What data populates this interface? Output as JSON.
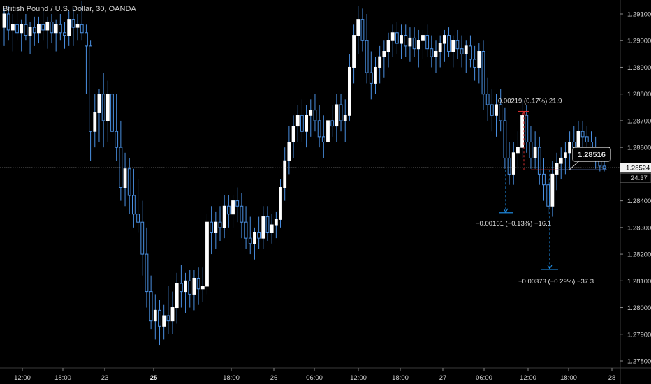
{
  "header": {
    "symbol_title": "British Pound / U.S. Dollar, 30, OANDA"
  },
  "price_scale": {
    "ticks": [
      "1.29100",
      "1.29000",
      "1.28900",
      "1.28800",
      "1.28700",
      "1.28600",
      "1.28400",
      "1.28300",
      "1.28200",
      "1.28100",
      "1.28000",
      "1.27900",
      "1.27800"
    ],
    "last_price_label": "1.28524",
    "countdown_label": "24:37"
  },
  "time_axis": {
    "ticks": [
      {
        "label": "12:00",
        "bold": false
      },
      {
        "label": "18:00",
        "bold": false
      },
      {
        "label": "23",
        "bold": false
      },
      {
        "label": "25",
        "bold": true
      },
      {
        "label": "18:00",
        "bold": false
      },
      {
        "label": "26",
        "bold": false
      },
      {
        "label": "06:00",
        "bold": false
      },
      {
        "label": "12:00",
        "bold": false
      },
      {
        "label": "18:00",
        "bold": false
      },
      {
        "label": "27",
        "bold": false
      },
      {
        "label": "06:00",
        "bold": false
      },
      {
        "label": "12:00",
        "bold": false
      },
      {
        "label": "18:00",
        "bold": false
      },
      {
        "label": "28",
        "bold": false
      }
    ]
  },
  "annotations": {
    "price_callout": "1.28516",
    "measure_up": "0.00219 (0.17%) 21.9",
    "measure_down_1": "−0.00161 (−0.13%) −16.1",
    "measure_down_2": "−0.00373 (−0.29%) −37.3"
  },
  "colors": {
    "background": "#000000",
    "candle_up_fill": "#ffffff",
    "candle_down_fill": "#ffffff",
    "wick": "#4a90e2",
    "measure_up": "#d32f2f",
    "measure_down": "#2196f3",
    "price_line": "#bdbdbd"
  },
  "chart_data": {
    "type": "candlestick",
    "title": "British Pound / U.S. Dollar, 30, OANDA",
    "ylim": [
      1.2777,
      1.2915
    ],
    "ohlc": [
      [
        1.2905,
        1.2912,
        1.2898,
        1.291
      ],
      [
        1.291,
        1.2913,
        1.29,
        1.2904
      ],
      [
        1.2904,
        1.291,
        1.2896,
        1.2906
      ],
      [
        1.2906,
        1.2912,
        1.29,
        1.2903
      ],
      [
        1.2903,
        1.2908,
        1.2896,
        1.2906
      ],
      [
        1.2906,
        1.291,
        1.29,
        1.2902
      ],
      [
        1.2902,
        1.2907,
        1.2895,
        1.2905
      ],
      [
        1.2905,
        1.2909,
        1.2898,
        1.2903
      ],
      [
        1.2903,
        1.2909,
        1.2899,
        1.2906
      ],
      [
        1.2906,
        1.2911,
        1.29,
        1.2904
      ],
      [
        1.2904,
        1.2909,
        1.2897,
        1.2907
      ],
      [
        1.2907,
        1.291,
        1.2899,
        1.2903
      ],
      [
        1.2903,
        1.2908,
        1.2896,
        1.2906
      ],
      [
        1.2906,
        1.291,
        1.29,
        1.2903
      ],
      [
        1.2903,
        1.2907,
        1.2897,
        1.2902
      ],
      [
        1.2902,
        1.2911,
        1.2898,
        1.2908
      ],
      [
        1.2908,
        1.2912,
        1.2898,
        1.2905
      ],
      [
        1.2905,
        1.291,
        1.29,
        1.2906
      ],
      [
        1.2906,
        1.2915,
        1.29,
        1.2903
      ],
      [
        1.2903,
        1.2906,
        1.288,
        1.2898
      ],
      [
        1.2898,
        1.29,
        1.2855,
        1.2866
      ],
      [
        1.2866,
        1.288,
        1.286,
        1.2873
      ],
      [
        1.2873,
        1.2882,
        1.2862,
        1.288
      ],
      [
        1.288,
        1.2888,
        1.286,
        1.287
      ],
      [
        1.287,
        1.2885,
        1.2862,
        1.288
      ],
      [
        1.288,
        1.2884,
        1.286,
        1.2866
      ],
      [
        1.2866,
        1.288,
        1.2855,
        1.286
      ],
      [
        1.286,
        1.287,
        1.284,
        1.2845
      ],
      [
        1.2845,
        1.2858,
        1.2838,
        1.2852
      ],
      [
        1.2852,
        1.2856,
        1.2835,
        1.2842
      ],
      [
        1.2842,
        1.2852,
        1.283,
        1.2835
      ],
      [
        1.2835,
        1.2848,
        1.2828,
        1.2832
      ],
      [
        1.2832,
        1.284,
        1.2812,
        1.282
      ],
      [
        1.282,
        1.283,
        1.28,
        1.2806
      ],
      [
        1.2806,
        1.2812,
        1.2792,
        1.2795
      ],
      [
        1.2795,
        1.2805,
        1.2788,
        1.2799
      ],
      [
        1.2799,
        1.2803,
        1.2786,
        1.2793
      ],
      [
        1.2793,
        1.2801,
        1.2788,
        1.2797
      ],
      [
        1.2797,
        1.2808,
        1.279,
        1.2795
      ],
      [
        1.2795,
        1.2806,
        1.279,
        1.28
      ],
      [
        1.28,
        1.2813,
        1.2794,
        1.2809
      ],
      [
        1.2809,
        1.2816,
        1.28,
        1.2806
      ],
      [
        1.2806,
        1.2813,
        1.2798,
        1.281
      ],
      [
        1.281,
        1.2814,
        1.28,
        1.2805
      ],
      [
        1.2805,
        1.2814,
        1.2799,
        1.2811
      ],
      [
        1.2811,
        1.2815,
        1.2801,
        1.2807
      ],
      [
        1.2807,
        1.2815,
        1.2802,
        1.2808
      ],
      [
        1.2808,
        1.2835,
        1.2805,
        1.2832
      ],
      [
        1.2832,
        1.2838,
        1.282,
        1.2828
      ],
      [
        1.2828,
        1.2836,
        1.2822,
        1.2832
      ],
      [
        1.2832,
        1.2838,
        1.2825,
        1.283
      ],
      [
        1.283,
        1.2842,
        1.2826,
        1.2838
      ],
      [
        1.2838,
        1.2842,
        1.283,
        1.2835
      ],
      [
        1.2835,
        1.2842,
        1.283,
        1.284
      ],
      [
        1.284,
        1.2845,
        1.2832,
        1.2838
      ],
      [
        1.2838,
        1.2843,
        1.2826,
        1.2832
      ],
      [
        1.2832,
        1.2838,
        1.2822,
        1.2826
      ],
      [
        1.2826,
        1.2834,
        1.282,
        1.2824
      ],
      [
        1.2824,
        1.283,
        1.2818,
        1.2828
      ],
      [
        1.2828,
        1.2834,
        1.2822,
        1.2826
      ],
      [
        1.2826,
        1.2838,
        1.2822,
        1.2834
      ],
      [
        1.2834,
        1.2838,
        1.2825,
        1.2828
      ],
      [
        1.2828,
        1.2835,
        1.2824,
        1.2831
      ],
      [
        1.2831,
        1.2836,
        1.2826,
        1.2833
      ],
      [
        1.2833,
        1.2848,
        1.283,
        1.2845
      ],
      [
        1.2845,
        1.286,
        1.284,
        1.2855
      ],
      [
        1.2855,
        1.2868,
        1.285,
        1.2862
      ],
      [
        1.2862,
        1.2872,
        1.2856,
        1.2868
      ],
      [
        1.2868,
        1.2876,
        1.2862,
        1.2872
      ],
      [
        1.2872,
        1.2878,
        1.2862,
        1.2866
      ],
      [
        1.2866,
        1.2876,
        1.286,
        1.2872
      ],
      [
        1.2872,
        1.2878,
        1.2864,
        1.2874
      ],
      [
        1.2874,
        1.288,
        1.2866,
        1.287
      ],
      [
        1.287,
        1.2876,
        1.286,
        1.2864
      ],
      [
        1.2864,
        1.2872,
        1.2856,
        1.2862
      ],
      [
        1.2862,
        1.2872,
        1.2854,
        1.287
      ],
      [
        1.287,
        1.2876,
        1.2864,
        1.2868
      ],
      [
        1.2868,
        1.288,
        1.2862,
        1.2876
      ],
      [
        1.2876,
        1.288,
        1.2866,
        1.287
      ],
      [
        1.287,
        1.2878,
        1.2862,
        1.2872
      ],
      [
        1.2872,
        1.2895,
        1.287,
        1.289
      ],
      [
        1.289,
        1.2906,
        1.2884,
        1.2902
      ],
      [
        1.2902,
        1.2913,
        1.2895,
        1.2908
      ],
      [
        1.2908,
        1.2912,
        1.2896,
        1.29
      ],
      [
        1.29,
        1.291,
        1.2884,
        1.2888
      ],
      [
        1.2888,
        1.2896,
        1.2878,
        1.2884
      ],
      [
        1.2884,
        1.2894,
        1.288,
        1.289
      ],
      [
        1.289,
        1.2898,
        1.2884,
        1.2894
      ],
      [
        1.2894,
        1.29,
        1.2886,
        1.2896
      ],
      [
        1.2896,
        1.2903,
        1.289,
        1.29
      ],
      [
        1.29,
        1.2906,
        1.2894,
        1.2903
      ],
      [
        1.2903,
        1.2907,
        1.2895,
        1.2899
      ],
      [
        1.2899,
        1.2906,
        1.2893,
        1.2902
      ],
      [
        1.2902,
        1.2906,
        1.2894,
        1.2898
      ],
      [
        1.2898,
        1.2905,
        1.2892,
        1.2901
      ],
      [
        1.2901,
        1.2905,
        1.2894,
        1.2897
      ],
      [
        1.2897,
        1.2904,
        1.289,
        1.29
      ],
      [
        1.29,
        1.2904,
        1.2893,
        1.2902
      ],
      [
        1.2902,
        1.2906,
        1.2894,
        1.2897
      ],
      [
        1.2897,
        1.2902,
        1.289,
        1.2894
      ],
      [
        1.2894,
        1.29,
        1.2888,
        1.2896
      ],
      [
        1.2896,
        1.2902,
        1.289,
        1.2899
      ],
      [
        1.2899,
        1.2904,
        1.2892,
        1.2902
      ],
      [
        1.2902,
        1.2905,
        1.2894,
        1.2896
      ],
      [
        1.2896,
        1.2902,
        1.289,
        1.29
      ],
      [
        1.29,
        1.2904,
        1.2893,
        1.2897
      ],
      [
        1.2897,
        1.2902,
        1.289,
        1.2895
      ],
      [
        1.2895,
        1.29,
        1.2888,
        1.2898
      ],
      [
        1.2898,
        1.2902,
        1.289,
        1.2893
      ],
      [
        1.2893,
        1.2898,
        1.2885,
        1.289
      ],
      [
        1.289,
        1.2899,
        1.2884,
        1.2896
      ],
      [
        1.2896,
        1.29,
        1.2874,
        1.288
      ],
      [
        1.288,
        1.2886,
        1.287,
        1.2876
      ],
      [
        1.2876,
        1.2882,
        1.2866,
        1.2872
      ],
      [
        1.2872,
        1.288,
        1.2864,
        1.2876
      ],
      [
        1.2876,
        1.2882,
        1.2866,
        1.287
      ],
      [
        1.287,
        1.2875,
        1.2852,
        1.2856
      ],
      [
        1.2856,
        1.2862,
        1.2846,
        1.285
      ],
      [
        1.285,
        1.2862,
        1.2846,
        1.2858
      ],
      [
        1.2858,
        1.2866,
        1.2852,
        1.286
      ],
      [
        1.286,
        1.2878,
        1.2856,
        1.2872
      ],
      [
        1.2872,
        1.2876,
        1.2858,
        1.2862
      ],
      [
        1.2862,
        1.2868,
        1.2852,
        1.2856
      ],
      [
        1.2856,
        1.2866,
        1.2852,
        1.286
      ],
      [
        1.286,
        1.2864,
        1.2846,
        1.285
      ],
      [
        1.285,
        1.2856,
        1.284,
        1.2846
      ],
      [
        1.2846,
        1.2848,
        1.2835,
        1.2838
      ],
      [
        1.2838,
        1.2855,
        1.2834,
        1.285
      ],
      [
        1.285,
        1.2858,
        1.2844,
        1.2854
      ],
      [
        1.2854,
        1.286,
        1.2848,
        1.2856
      ],
      [
        1.2856,
        1.2862,
        1.285,
        1.2858
      ],
      [
        1.2858,
        1.2866,
        1.2852,
        1.2862
      ],
      [
        1.2862,
        1.2868,
        1.2855,
        1.286
      ],
      [
        1.286,
        1.287,
        1.2856,
        1.2866
      ],
      [
        1.2866,
        1.287,
        1.2858,
        1.2864
      ],
      [
        1.2864,
        1.2868,
        1.2858,
        1.2862
      ],
      [
        1.2862,
        1.2866,
        1.2856,
        1.286
      ],
      [
        1.286,
        1.2864,
        1.2852,
        1.2856
      ],
      [
        1.2856,
        1.286,
        1.2851,
        1.2853
      ],
      [
        1.2853,
        1.2856,
        1.2851,
        1.2852
      ]
    ],
    "current_price": 1.28524,
    "callout_price": 1.28516,
    "measures": [
      {
        "label": "0.00219 (0.17%) 21.9",
        "from": 1.28516,
        "to": 1.28735,
        "direction": "up"
      },
      {
        "label": "−0.00161 (−0.13%) −16.1",
        "from": 1.28516,
        "to": 1.28355,
        "direction": "down"
      },
      {
        "label": "−0.00373 (−0.29%) −37.3",
        "from": 1.28516,
        "to": 1.28143,
        "direction": "down"
      }
    ]
  }
}
